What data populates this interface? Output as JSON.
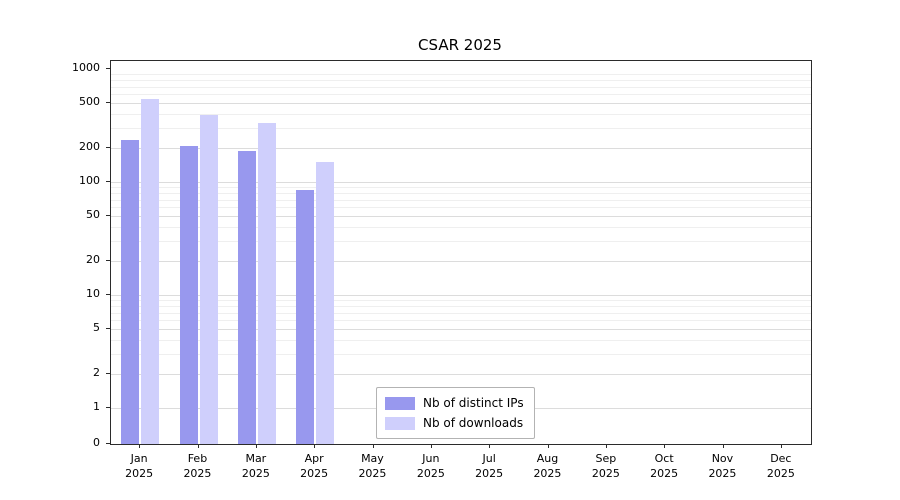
{
  "title": "CSAR 2025",
  "chart_data": {
    "type": "bar",
    "title": "CSAR 2025",
    "scale": "symlog",
    "grid": true,
    "legend_position": "lower center",
    "year_label": "2025",
    "categories": [
      "Jan",
      "Feb",
      "Mar",
      "Apr",
      "May",
      "Jun",
      "Jul",
      "Aug",
      "Sep",
      "Oct",
      "Nov",
      "Dec"
    ],
    "yticks": [
      0,
      1,
      2,
      5,
      10,
      20,
      50,
      100,
      200,
      500,
      1000
    ],
    "ylim": [
      0,
      1000
    ],
    "series": [
      {
        "name": "Nb of distinct IPs",
        "color": "#9898ee",
        "values": [
          235,
          210,
          190,
          85,
          null,
          null,
          null,
          null,
          null,
          null,
          null,
          null
        ]
      },
      {
        "name": "Nb of downloads",
        "color": "#cfcffc",
        "values": [
          540,
          395,
          330,
          150,
          null,
          null,
          null,
          null,
          null,
          null,
          null,
          null
        ]
      }
    ]
  },
  "legend": {
    "items": [
      {
        "label": "Nb of distinct IPs"
      },
      {
        "label": "Nb of downloads"
      }
    ]
  }
}
